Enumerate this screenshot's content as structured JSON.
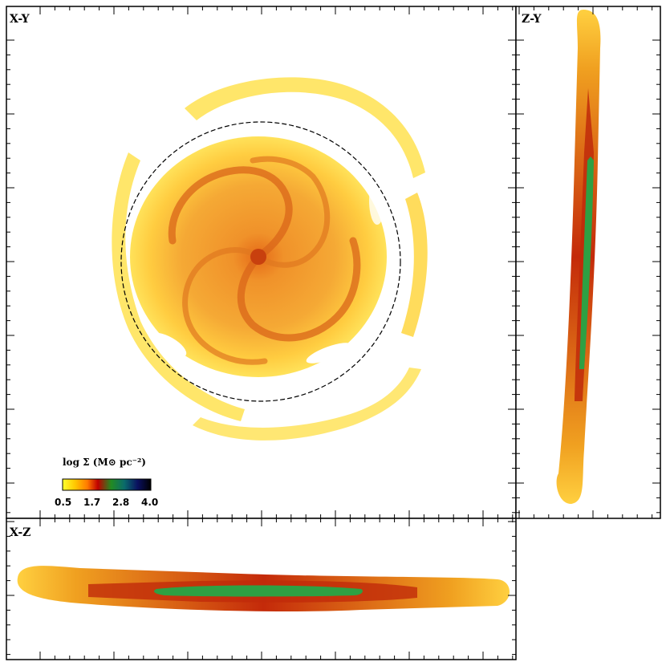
{
  "panels": {
    "xy": {
      "label": "X-Y"
    },
    "zy": {
      "label": "Z-Y"
    },
    "xz": {
      "label": "X-Z"
    }
  },
  "colorbar": {
    "title": "log Σ (M⊙ pc⁻²)",
    "ticks": [
      "0.5",
      "1.7",
      "2.8",
      "4.0"
    ],
    "stops": [
      "#ffff30",
      "#ffc800",
      "#ff7a00",
      "#c00000",
      "#228b22",
      "#0a6b6b",
      "#0a1060",
      "#000000"
    ]
  },
  "colors": {
    "disk_light": "#ffd84a",
    "disk_mid": "#f5a623",
    "disk_arm": "#d96a10",
    "disk_dense": "#b01010",
    "disk_core": "#2ea043",
    "circle": "#000000"
  }
}
